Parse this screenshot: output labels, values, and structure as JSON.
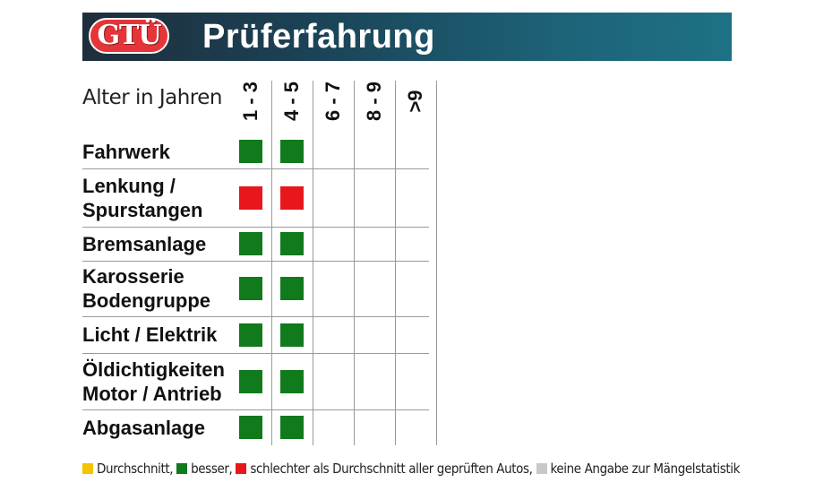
{
  "header": {
    "logo_text": "GTÜ",
    "title": "Prüferfahrung"
  },
  "chart_data": {
    "type": "table",
    "corner_label": "Alter in Jahren",
    "columns": [
      "1 - 3",
      "4 - 5",
      "6 - 7",
      "8 - 9",
      ">9"
    ],
    "rows": [
      {
        "label": [
          "Fahrwerk"
        ],
        "values": [
          "besser",
          "besser",
          null,
          null,
          null
        ]
      },
      {
        "label": [
          "Lenkung /",
          "Spurstangen"
        ],
        "values": [
          "schlechter",
          "schlechter",
          null,
          null,
          null
        ]
      },
      {
        "label": [
          "Bremsanlage"
        ],
        "values": [
          "besser",
          "besser",
          null,
          null,
          null
        ]
      },
      {
        "label": [
          "Karosserie",
          "Bodengruppe"
        ],
        "values": [
          "besser",
          "besser",
          null,
          null,
          null
        ]
      },
      {
        "label": [
          "Licht / Elektrik"
        ],
        "values": [
          "besser",
          "besser",
          null,
          null,
          null
        ]
      },
      {
        "label": [
          "Öldichtigkeiten",
          "Motor / Antrieb"
        ],
        "values": [
          "besser",
          "besser",
          null,
          null,
          null
        ]
      },
      {
        "label": [
          "Abgasanlage"
        ],
        "values": [
          "besser",
          "besser",
          null,
          null,
          null
        ]
      }
    ],
    "colors": {
      "durchschnitt": "#f2c500",
      "besser": "#117a1c",
      "schlechter": "#e8171c",
      "keine_angabe": "#c8c8c8"
    }
  },
  "legend": [
    {
      "key": "durchschnitt",
      "label": "Durchschnitt,"
    },
    {
      "key": "besser",
      "label": "besser,"
    },
    {
      "key": "schlechter",
      "label": "schlechter als Durchschnitt aller geprüften Autos,"
    },
    {
      "key": "keine_angabe",
      "label": "keine Angabe zur Mängelstatistik"
    }
  ]
}
